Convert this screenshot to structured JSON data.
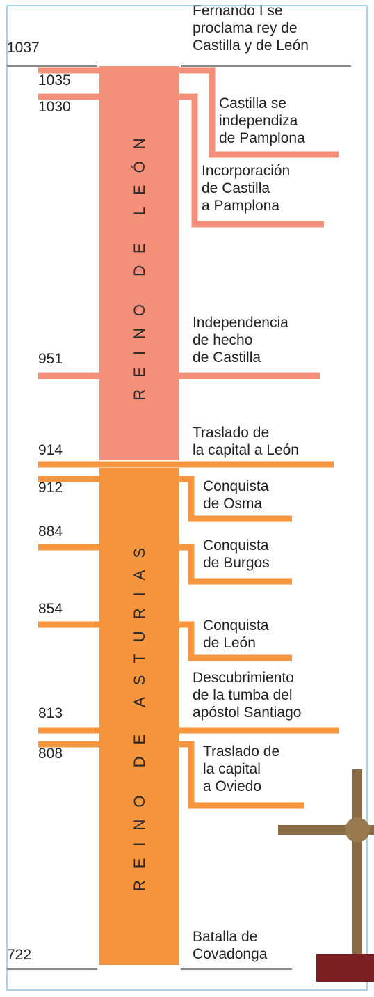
{
  "kingdoms": [
    {
      "label": "REINO DE LEÓN"
    },
    {
      "label": "REINO DE ASTURIAS"
    }
  ],
  "events": [
    {
      "year": "1037",
      "text": [
        "Fernando I se",
        "proclama rey de",
        "Castilla y de León"
      ]
    },
    {
      "year": "1035",
      "text": [
        "Castilla se",
        "independiza",
        "de Pamplona"
      ]
    },
    {
      "year": "1030",
      "text": [
        "Incorporación",
        "de Castilla",
        "a Pamplona"
      ]
    },
    {
      "year": "951",
      "text": [
        "Independencia",
        "de hecho",
        "de Castilla"
      ]
    },
    {
      "year": "914",
      "text": [
        "Traslado de",
        "la capital a León"
      ]
    },
    {
      "year": "912",
      "text": [
        "Conquista",
        "de Osma"
      ]
    },
    {
      "year": "884",
      "text": [
        "Conquista",
        "de Burgos"
      ]
    },
    {
      "year": "854",
      "text": [
        "Conquista",
        "de León"
      ]
    },
    {
      "year": "813",
      "text": [
        "Descubrimiento",
        "de la tumba del",
        "apóstol Santiago"
      ]
    },
    {
      "year": "808",
      "text": [
        "Traslado de",
        "la capital",
        "a Oviedo"
      ]
    },
    {
      "year": "722",
      "text": [
        "Batalla de",
        "Covadonga"
      ]
    }
  ]
}
